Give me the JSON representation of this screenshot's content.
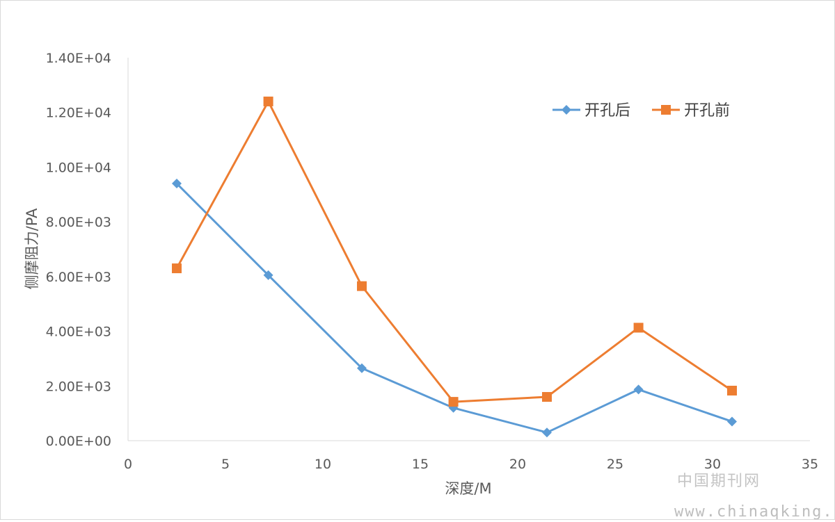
{
  "chart_data": {
    "type": "line",
    "title": "",
    "xlabel": "深度/M",
    "ylabel": "侧摩阻力/PA",
    "xlim": [
      0,
      35
    ],
    "ylim": [
      0,
      14000
    ],
    "x_ticks": [
      "0",
      "5",
      "10",
      "15",
      "20",
      "25",
      "30",
      "35"
    ],
    "y_ticks": [
      "0.00E+00",
      "2.00E+03",
      "4.00E+03",
      "6.00E+03",
      "8.00E+03",
      "1.00E+04",
      "1.20E+04",
      "1.40E+04"
    ],
    "grid": false,
    "legend_position": "top-right",
    "series": [
      {
        "name": "开孔后",
        "color": "#5b9bd5",
        "marker": "diamond",
        "x": [
          2.5,
          7.2,
          12.0,
          16.7,
          21.5,
          26.2,
          31.0
        ],
        "y": [
          9400,
          6050,
          2650,
          1200,
          300,
          1870,
          700
        ]
      },
      {
        "name": "开孔前",
        "color": "#ed7d31",
        "marker": "square",
        "x": [
          2.5,
          7.2,
          12.0,
          16.7,
          21.5,
          26.2,
          31.0
        ],
        "y": [
          6300,
          12400,
          5650,
          1420,
          1600,
          4130,
          1830
        ]
      }
    ]
  },
  "watermark": {
    "line1": "中国期刊网",
    "line2": "www.chinaqking.com"
  }
}
